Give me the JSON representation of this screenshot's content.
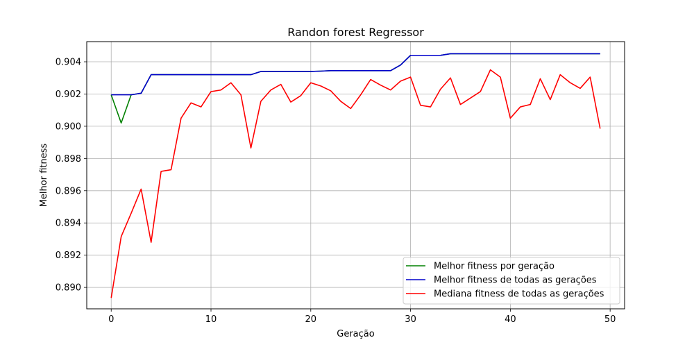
{
  "chart_data": {
    "type": "line",
    "title": "Randon forest Regressor",
    "xlabel": "Geração",
    "ylabel": "Melhor fitness",
    "xlim": [
      -2.45,
      51.45
    ],
    "ylim": [
      0.88867,
      0.90525
    ],
    "xticks": [
      0,
      10,
      20,
      30,
      40,
      50
    ],
    "xtick_labels": [
      "0",
      "10",
      "20",
      "30",
      "40",
      "50"
    ],
    "yticks": [
      0.89,
      0.892,
      0.894,
      0.896,
      0.898,
      0.9,
      0.902,
      0.904
    ],
    "ytick_labels": [
      "0.890",
      "0.892",
      "0.894",
      "0.896",
      "0.898",
      "0.900",
      "0.902",
      "0.904"
    ],
    "grid": true,
    "legend_position": "lower-right",
    "x": [
      0,
      1,
      2,
      3,
      4,
      5,
      6,
      7,
      8,
      9,
      10,
      11,
      12,
      13,
      14,
      15,
      16,
      17,
      18,
      19,
      20,
      21,
      22,
      23,
      24,
      25,
      26,
      27,
      28,
      29,
      30,
      31,
      32,
      33,
      34,
      35,
      36,
      37,
      38,
      39,
      40,
      41,
      42,
      43,
      44,
      45,
      46,
      47,
      48,
      49
    ],
    "series": [
      {
        "name": "Melhor fitness por geração",
        "color": "#008000",
        "values": [
          0.90195,
          0.9002,
          0.90195,
          0.90205,
          0.9032,
          0.9032,
          0.9032,
          0.9032,
          0.9032,
          0.9032,
          0.9032,
          0.9032,
          0.9032,
          0.9032,
          0.9032,
          0.9034,
          0.9034,
          0.9034,
          0.9034,
          0.9034,
          0.9034,
          0.90342,
          0.90345,
          0.90345,
          0.90345,
          0.90345,
          0.90345,
          0.90345,
          0.90345,
          0.9038,
          0.9044,
          0.9044,
          0.9044,
          0.9044,
          0.9045,
          0.9045,
          0.9045,
          0.9045,
          0.9045,
          0.9045,
          0.9045,
          0.9045,
          0.9045,
          0.9045,
          0.9045,
          0.9045,
          0.9045,
          0.9045,
          0.9045,
          0.9045
        ]
      },
      {
        "name": "Melhor fitness de todas as gerações",
        "color": "#0000cc",
        "values": [
          0.90195,
          0.90195,
          0.90195,
          0.90205,
          0.9032,
          0.9032,
          0.9032,
          0.9032,
          0.9032,
          0.9032,
          0.9032,
          0.9032,
          0.9032,
          0.9032,
          0.9032,
          0.9034,
          0.9034,
          0.9034,
          0.9034,
          0.9034,
          0.9034,
          0.90342,
          0.90345,
          0.90345,
          0.90345,
          0.90345,
          0.90345,
          0.90345,
          0.90345,
          0.9038,
          0.9044,
          0.9044,
          0.9044,
          0.9044,
          0.9045,
          0.9045,
          0.9045,
          0.9045,
          0.9045,
          0.9045,
          0.9045,
          0.9045,
          0.9045,
          0.9045,
          0.9045,
          0.9045,
          0.9045,
          0.9045,
          0.9045,
          0.9045
        ]
      },
      {
        "name": "Mediana fitness de todas as gerações",
        "color": "#ff0000",
        "values": [
          0.88935,
          0.89315,
          0.8946,
          0.8961,
          0.8928,
          0.8972,
          0.8973,
          0.9005,
          0.90145,
          0.9012,
          0.90215,
          0.90225,
          0.9027,
          0.90195,
          0.89865,
          0.90155,
          0.90225,
          0.9026,
          0.9015,
          0.9019,
          0.9027,
          0.9025,
          0.9022,
          0.90155,
          0.9011,
          0.90195,
          0.9029,
          0.90255,
          0.90225,
          0.9028,
          0.90305,
          0.9013,
          0.9012,
          0.9023,
          0.903,
          0.90135,
          0.90175,
          0.90215,
          0.9035,
          0.90305,
          0.9005,
          0.9012,
          0.90135,
          0.90295,
          0.90165,
          0.9032,
          0.9027,
          0.90235,
          0.90305,
          0.89985
        ]
      }
    ]
  }
}
